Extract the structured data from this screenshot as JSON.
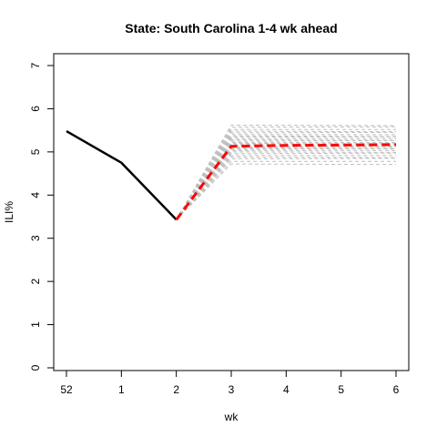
{
  "chart_data": {
    "type": "line",
    "title": "State: South Carolina 1-4 wk ahead",
    "xlabel": "wk",
    "ylabel": "ILI%",
    "categories": [
      "52",
      "1",
      "2",
      "3",
      "4",
      "5",
      "6"
    ],
    "yticks": [
      "0",
      "1",
      "2",
      "3",
      "4",
      "5",
      "6",
      "7"
    ],
    "ylim": [
      0,
      7
    ],
    "grid": false,
    "legend": "none",
    "series": [
      {
        "role": "observed",
        "color": "#000000",
        "x": [
          "52",
          "1",
          "2"
        ],
        "values": [
          5.48,
          4.75,
          3.43
        ]
      },
      {
        "role": "forecast-mean",
        "color": "#ff0000",
        "x": [
          "2",
          "3",
          "4",
          "5",
          "6"
        ],
        "values": [
          3.43,
          5.13,
          5.15,
          5.16,
          5.17
        ]
      }
    ],
    "ensemble": {
      "color": "#bebebe",
      "x": [
        "2",
        "3",
        "4",
        "5",
        "6"
      ],
      "start": 3.43,
      "endpoints": [
        4.72,
        4.78,
        4.84,
        4.88,
        4.92,
        4.96,
        5.0,
        5.03,
        5.06,
        5.08,
        5.1,
        5.12,
        5.14,
        5.16,
        5.18,
        5.2,
        5.22,
        5.25,
        5.28,
        5.31,
        5.34,
        5.37,
        5.4,
        5.44,
        5.48,
        5.52,
        5.57,
        5.62
      ]
    }
  }
}
